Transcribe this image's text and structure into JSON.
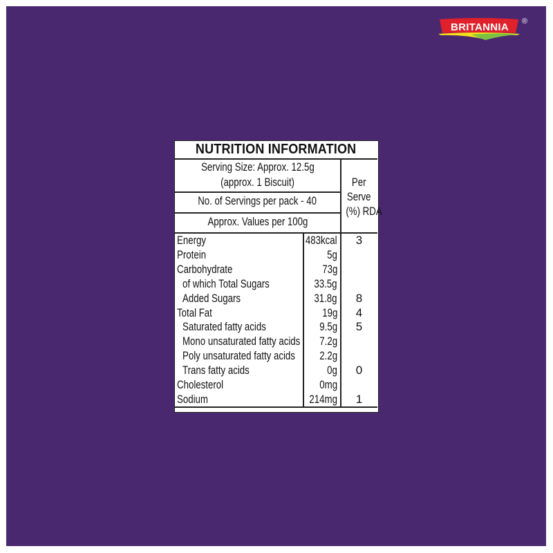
{
  "brand": {
    "logo_text": "BRITANNIA",
    "registered": "®",
    "colors": {
      "background": "#4a2870",
      "logo_red": "#e0202a",
      "logo_yellow": "#f4e21a",
      "logo_green": "#7cc242"
    }
  },
  "nutrition": {
    "title": "NUTRITION INFORMATION",
    "serving_size_line1": "Serving Size: Approx. 12.5g",
    "serving_size_line2": "(approx. 1 Biscuit)",
    "servings_per_pack": "No. of Servings per pack - 40",
    "values_per": "Approx. Values per 100g",
    "rda_header": [
      "Per",
      "Serve",
      "(%) RDA"
    ],
    "rows": [
      {
        "label": "Energy",
        "value": "483kcal",
        "rda": "3",
        "indent": false
      },
      {
        "label": "Protein",
        "value": "5g",
        "rda": "",
        "indent": false
      },
      {
        "label": "Carbohydrate",
        "value": "73g",
        "rda": "",
        "indent": false
      },
      {
        "label": "of which Total Sugars",
        "value": "33.5g",
        "rda": "",
        "indent": true
      },
      {
        "label": "Added Sugars",
        "value": "31.8g",
        "rda": "8",
        "indent": true
      },
      {
        "label": "Total Fat",
        "value": "19g",
        "rda": "4",
        "indent": false
      },
      {
        "label": "Saturated fatty acids",
        "value": "9.5g",
        "rda": "5",
        "indent": true
      },
      {
        "label": "Mono unsaturated fatty acids",
        "value": "7.2g",
        "rda": "",
        "indent": true
      },
      {
        "label": "Poly unsaturated fatty acids",
        "value": "2.2g",
        "rda": "",
        "indent": true
      },
      {
        "label": "Trans fatty acids",
        "value": "0g",
        "rda": "0",
        "indent": true
      },
      {
        "label": "Cholesterol",
        "value": "0mg",
        "rda": "",
        "indent": false
      },
      {
        "label": "Sodium",
        "value": "214mg",
        "rda": "1",
        "indent": false
      }
    ]
  }
}
